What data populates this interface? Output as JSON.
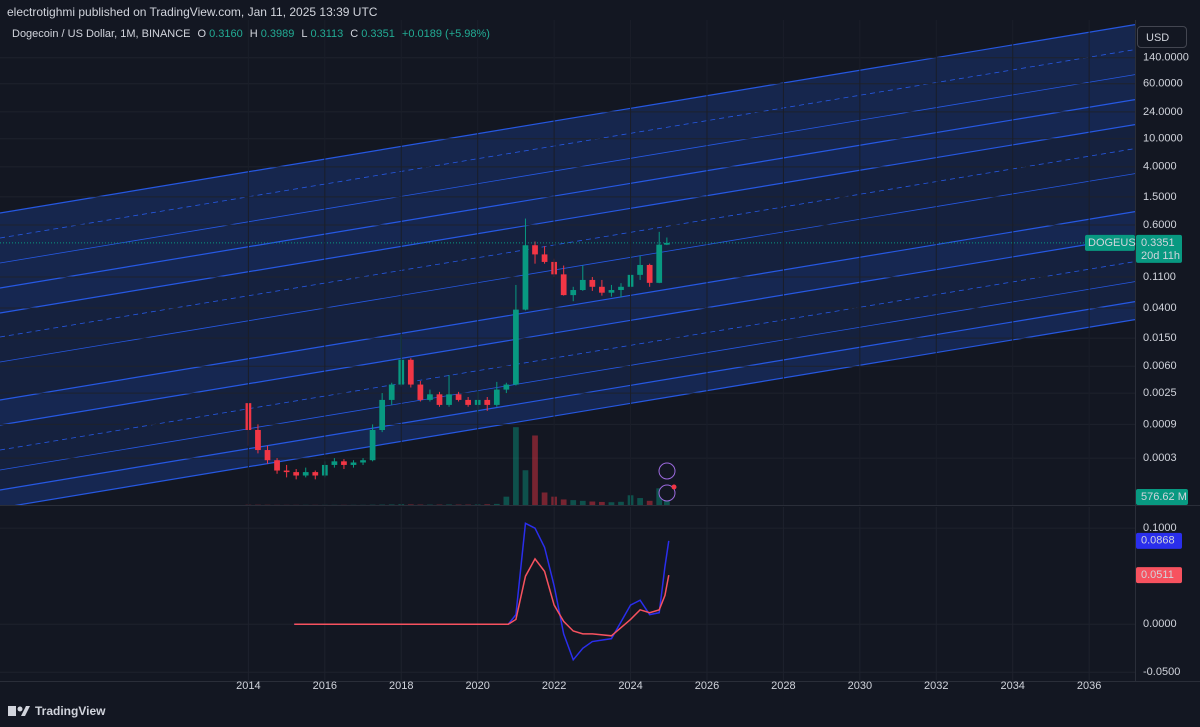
{
  "header": "electrotighmi published on TradingView.com, Jan 11, 2025 13:39 UTC",
  "currency": "USD",
  "footer": "TradingView",
  "chart_data": [
    {
      "type": "candlestick",
      "title": "Dogecoin / US Dollar, 1M, BINANCE",
      "legend": [
        {
          "key": "O",
          "value": "0.3160"
        },
        {
          "key": "H",
          "value": "0.3989"
        },
        {
          "key": "L",
          "value": "0.3113"
        },
        {
          "key": "C",
          "value": "0.3351"
        }
      ],
      "change": "+0.0189 (+5.98%)",
      "symbol": "DOGEUSD",
      "last_price": 0.3351,
      "countdown": "20d 11h",
      "log_scale": true,
      "up_color": "#089981",
      "down_color": "#f23645",
      "xlim": [
        2007.5,
        2037.2
      ],
      "ylim": [
        6.5e-05,
        480
      ],
      "yticks": [
        {
          "value": 140,
          "label": "140.0000"
        },
        {
          "value": 60,
          "label": "60.0000"
        },
        {
          "value": 24,
          "label": "24.0000"
        },
        {
          "value": 10,
          "label": "10.0000"
        },
        {
          "value": 4,
          "label": "4.0000"
        },
        {
          "value": 1.5,
          "label": "1.5000"
        },
        {
          "value": 0.6,
          "label": "0.6000"
        },
        {
          "value": 0.11,
          "label": "0.1100"
        },
        {
          "value": 0.04,
          "label": "0.0400"
        },
        {
          "value": 0.015,
          "label": "0.0150"
        },
        {
          "value": 0.006,
          "label": "0.0060"
        },
        {
          "value": 0.0025,
          "label": "0.0025"
        },
        {
          "value": 0.0009,
          "label": "0.0009"
        },
        {
          "value": 0.0003,
          "label": "0.0003"
        }
      ],
      "x": [
        2014.0,
        2014.25,
        2014.5,
        2014.75,
        2015.0,
        2015.25,
        2015.5,
        2015.75,
        2016.0,
        2016.25,
        2016.5,
        2016.75,
        2017.0,
        2017.25,
        2017.5,
        2017.75,
        2018.0,
        2018.25,
        2018.5,
        2018.75,
        2019.0,
        2019.25,
        2019.5,
        2019.75,
        2020.0,
        2020.25,
        2020.5,
        2020.75,
        2021.0,
        2021.25,
        2021.5,
        2021.75,
        2022.0,
        2022.25,
        2022.5,
        2022.75,
        2023.0,
        2023.25,
        2023.5,
        2023.75,
        2024.0,
        2024.25,
        2024.5,
        2024.75,
        2024.95
      ],
      "open": [
        0.0018,
        0.00075,
        0.00039,
        0.00028,
        0.0002,
        0.00019,
        0.00017,
        0.00019,
        0.00017,
        0.00024,
        0.00027,
        0.00024,
        0.00026,
        0.00028,
        0.00075,
        0.002,
        0.0033,
        0.0074,
        0.0033,
        0.002,
        0.0024,
        0.0017,
        0.0024,
        0.002,
        0.0017,
        0.002,
        0.0017,
        0.0028,
        0.0033,
        0.038,
        0.31,
        0.23,
        0.18,
        0.12,
        0.061,
        0.072,
        0.1,
        0.08,
        0.066,
        0.072,
        0.08,
        0.118,
        0.163,
        0.091,
        0.316
      ],
      "high": [
        0.0018,
        0.0009,
        0.00045,
        0.0003,
        0.00024,
        0.00021,
        0.00022,
        0.0002,
        0.00027,
        0.0003,
        0.00029,
        0.00028,
        0.0003,
        0.0009,
        0.0025,
        0.0035,
        0.0167,
        0.0078,
        0.0037,
        0.0028,
        0.0026,
        0.0045,
        0.0026,
        0.0022,
        0.0027,
        0.0022,
        0.0036,
        0.0035,
        0.085,
        0.74,
        0.35,
        0.3,
        0.2,
        0.16,
        0.08,
        0.16,
        0.11,
        0.1,
        0.085,
        0.09,
        0.23,
        0.22,
        0.17,
        0.48,
        0.3989
      ],
      "low": [
        0.00045,
        0.00035,
        0.00025,
        0.00018,
        0.00016,
        0.00015,
        0.00016,
        0.00015,
        0.00016,
        0.00022,
        0.00021,
        0.00022,
        0.00024,
        0.00027,
        0.0007,
        0.0017,
        0.0031,
        0.003,
        0.0019,
        0.0019,
        0.0016,
        0.0016,
        0.0019,
        0.0016,
        0.0013,
        0.0014,
        0.0016,
        0.0025,
        0.0032,
        0.037,
        0.17,
        0.17,
        0.11,
        0.06,
        0.05,
        0.07,
        0.07,
        0.06,
        0.058,
        0.057,
        0.075,
        0.1,
        0.08,
        0.09,
        0.3113
      ],
      "close": [
        0.00075,
        0.00039,
        0.00028,
        0.0002,
        0.00019,
        0.00017,
        0.00019,
        0.00017,
        0.00024,
        0.00027,
        0.00024,
        0.00026,
        0.00028,
        0.00075,
        0.002,
        0.0033,
        0.0074,
        0.0033,
        0.002,
        0.0024,
        0.0017,
        0.0024,
        0.002,
        0.0017,
        0.002,
        0.0017,
        0.0028,
        0.0033,
        0.038,
        0.31,
        0.23,
        0.18,
        0.12,
        0.061,
        0.072,
        0.1,
        0.08,
        0.066,
        0.072,
        0.08,
        0.118,
        0.163,
        0.091,
        0.316,
        0.3351
      ],
      "volume": [
        20,
        20,
        15,
        10,
        10,
        10,
        10,
        10,
        10,
        10,
        10,
        10,
        10,
        20,
        30,
        40,
        60,
        40,
        30,
        30,
        30,
        40,
        30,
        30,
        40,
        50,
        80,
        600,
        5600,
        2500,
        5000,
        900,
        600,
        400,
        350,
        300,
        250,
        220,
        200,
        230,
        700,
        500,
        300,
        1200,
        576.62
      ],
      "volume_label": {
        "value": 576.62,
        "label": "576.62 M"
      }
    },
    {
      "type": "line",
      "xlim": [
        2007.5,
        2037.2
      ],
      "ylim": [
        -0.058,
        0.122
      ],
      "xticks": [
        2014,
        2016,
        2018,
        2020,
        2022,
        2024,
        2026,
        2028,
        2030,
        2032,
        2034,
        2036
      ],
      "yticks": [
        {
          "value": 0.1,
          "label": "0.1000"
        },
        {
          "value": 0,
          "label": "0.0000"
        },
        {
          "value": -0.05,
          "label": "-0.0500"
        }
      ],
      "x": [
        2015.2,
        2020.8,
        2021.0,
        2021.25,
        2021.5,
        2021.75,
        2022.0,
        2022.25,
        2022.5,
        2022.75,
        2023.0,
        2023.5,
        2024.0,
        2024.25,
        2024.5,
        2024.75,
        2024.9,
        2025.0
      ],
      "series": [
        {
          "color": "#2a2eec",
          "values": [
            0,
            0,
            0.01,
            0.105,
            0.1,
            0.08,
            0.04,
            -0.01,
            -0.037,
            -0.025,
            -0.018,
            -0.015,
            0.02,
            0.025,
            0.01,
            0.012,
            0.06,
            0.0868
          ]
        },
        {
          "color": "#f7525f",
          "values": [
            0,
            0,
            0.005,
            0.05,
            0.068,
            0.055,
            0.02,
            0.003,
            -0.007,
            -0.01,
            -0.01,
            -0.012,
            0.005,
            0.015,
            0.012,
            0.015,
            0.03,
            0.0511
          ]
        }
      ]
    }
  ]
}
